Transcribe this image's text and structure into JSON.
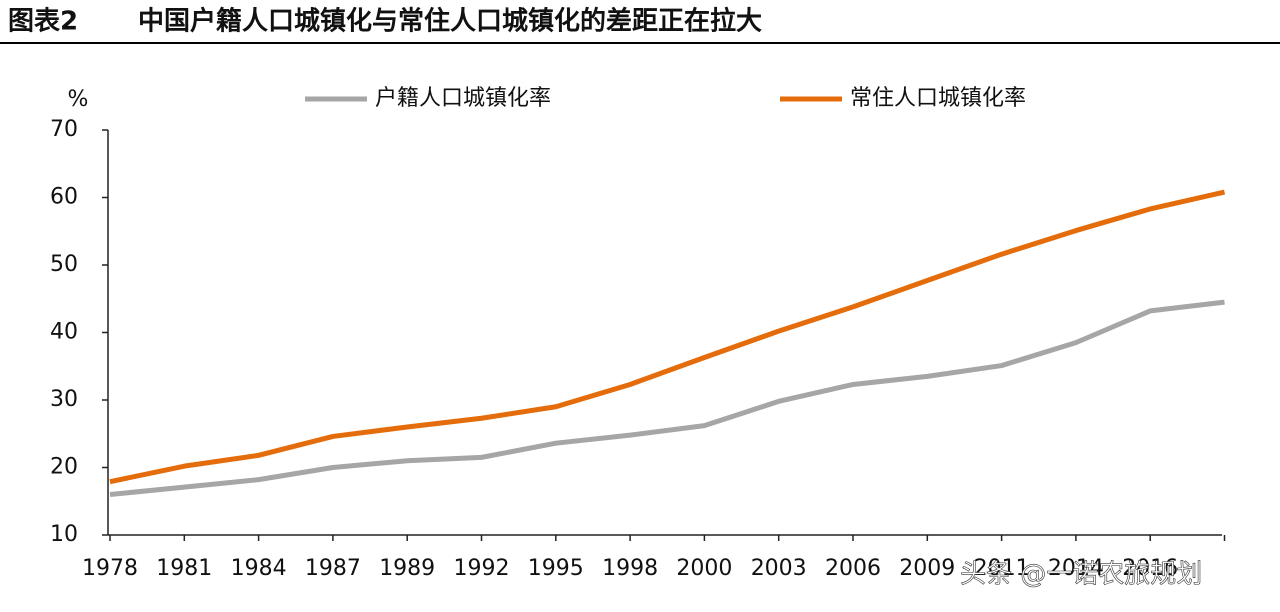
{
  "chart_data": {
    "type": "line",
    "figure_label": "图表2",
    "title": "中国户籍人口城镇化与常住人口城镇化的差距正在拉大",
    "y_unit": "%",
    "watermark": "头条 @一诺农旅规划",
    "categories": [
      "1978",
      "1981",
      "1984",
      "1987",
      "1989",
      "1992",
      "1995",
      "1998",
      "2000",
      "2003",
      "2006",
      "2009",
      "2011",
      "2014",
      "2016",
      null
    ],
    "series": [
      {
        "name": "户籍人口城镇化率",
        "color": "#a6a6a6",
        "values": [
          16,
          17.1,
          18.2,
          20,
          21,
          21.5,
          23.6,
          24.8,
          26.2,
          29.8,
          32.3,
          33.5,
          35.1,
          38.5,
          43.2,
          44.5
        ]
      },
      {
        "name": "常住人口城镇化率",
        "color": "#e46c0a",
        "values": [
          17.9,
          20.2,
          21.8,
          24.6,
          26,
          27.3,
          29,
          32.3,
          36.3,
          40.2,
          43.8,
          47.7,
          51.6,
          55.1,
          58.3,
          60.8
        ]
      }
    ],
    "ylim": [
      10,
      70
    ],
    "yticks": [
      10,
      20,
      30,
      40,
      50,
      60,
      70
    ],
    "legend": "top"
  }
}
